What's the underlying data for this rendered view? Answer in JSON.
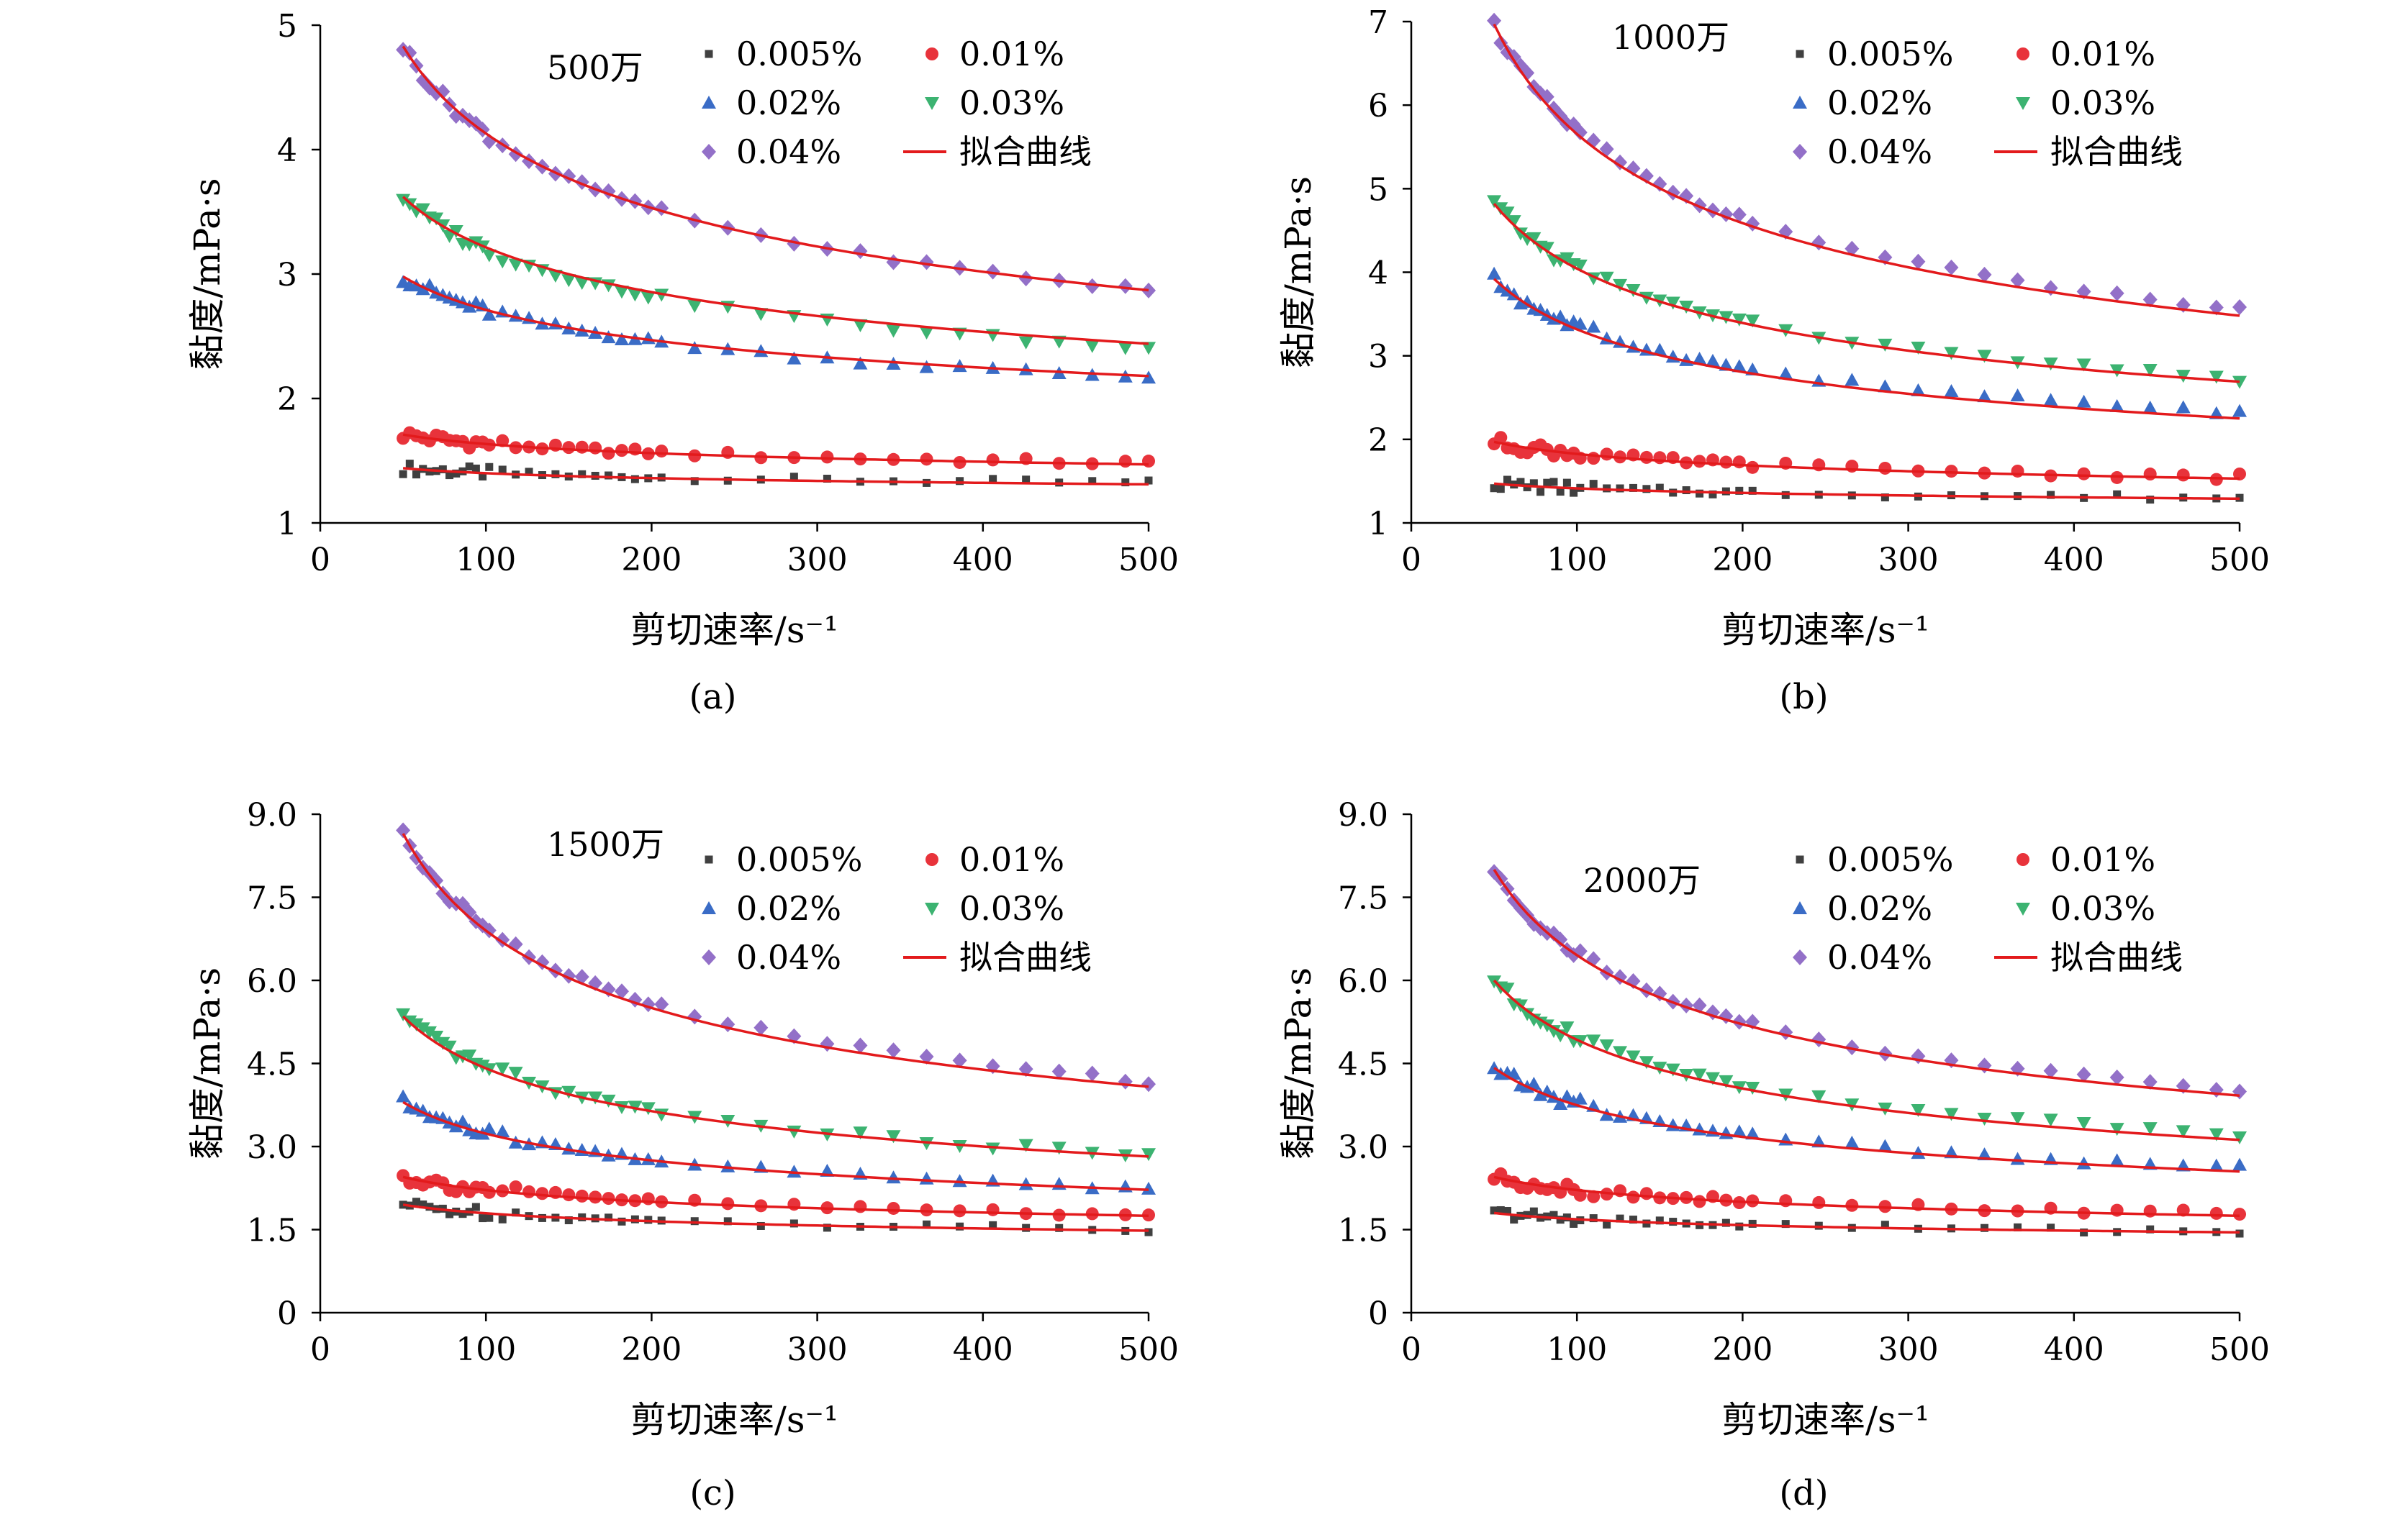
{
  "chart_data": [
    {
      "id": "a",
      "type": "scatter",
      "caption": "(a)",
      "annotation": "500万",
      "xlabel": "剪切速率/s⁻¹",
      "ylabel": "黏度/mPa·s",
      "xlim": [
        0,
        500
      ],
      "ylim": [
        1,
        5
      ],
      "xticks": [
        0,
        100,
        200,
        300,
        400,
        500
      ],
      "yticks": [
        1,
        2,
        3,
        4,
        5
      ],
      "ytick_labels": [
        "1",
        "2",
        "3",
        "4",
        "5"
      ],
      "fit_label": "拟合曲线",
      "fit_color": "#e31a1c",
      "series": [
        {
          "name": "0.005%",
          "marker": "square",
          "color": "#404040",
          "start": 1.44,
          "end": 1.32,
          "fit_start": 1.44,
          "fit_end": 1.31
        },
        {
          "name": "0.01%",
          "marker": "circle",
          "color": "#e8333b",
          "start": 1.71,
          "end": 1.48,
          "fit_start": 1.71,
          "fit_end": 1.47
        },
        {
          "name": "0.02%",
          "marker": "triangle-up",
          "color": "#3a6cc6",
          "start": 2.98,
          "end": 2.17,
          "fit_start": 2.98,
          "fit_end": 2.18
        },
        {
          "name": "0.03%",
          "marker": "triangle-down",
          "color": "#3cb371",
          "start": 3.62,
          "end": 2.4,
          "fit_start": 3.62,
          "fit_end": 2.44
        },
        {
          "name": "0.04%",
          "marker": "diamond",
          "color": "#9370c8",
          "start": 4.83,
          "end": 2.87,
          "fit_start": 4.83,
          "fit_end": 2.87
        }
      ]
    },
    {
      "id": "b",
      "type": "scatter",
      "caption": "(b)",
      "annotation": "1000万",
      "xlabel": "剪切速率/s⁻¹",
      "ylabel": "黏度/mPa·s",
      "xlim": [
        0,
        500
      ],
      "ylim": [
        1,
        7
      ],
      "xticks": [
        0,
        100,
        200,
        300,
        400,
        500
      ],
      "yticks": [
        1,
        2,
        3,
        4,
        5,
        6,
        7
      ],
      "ytick_labels": [
        "1",
        "2",
        "3",
        "4",
        "5",
        "6",
        "7"
      ],
      "fit_label": "拟合曲线",
      "fit_color": "#e31a1c",
      "series": [
        {
          "name": "0.005%",
          "marker": "square",
          "color": "#404040",
          "start": 1.47,
          "end": 1.3,
          "fit_start": 1.47,
          "fit_end": 1.29
        },
        {
          "name": "0.01%",
          "marker": "circle",
          "color": "#e8333b",
          "start": 1.97,
          "end": 1.55,
          "fit_start": 1.97,
          "fit_end": 1.53
        },
        {
          "name": "0.02%",
          "marker": "triangle-up",
          "color": "#3a6cc6",
          "start": 3.92,
          "end": 2.32,
          "fit_start": 3.92,
          "fit_end": 2.25
        },
        {
          "name": "0.03%",
          "marker": "triangle-down",
          "color": "#3cb371",
          "start": 4.82,
          "end": 2.72,
          "fit_start": 4.82,
          "fit_end": 2.69
        },
        {
          "name": "0.04%",
          "marker": "diamond",
          "color": "#9370c8",
          "start": 6.97,
          "end": 3.55,
          "fit_start": 6.97,
          "fit_end": 3.48
        }
      ]
    },
    {
      "id": "c",
      "type": "scatter",
      "caption": "(c)",
      "annotation": "1500万",
      "xlabel": "剪切速率/s⁻¹",
      "ylabel": "黏度/mPa·s",
      "xlim": [
        0,
        500
      ],
      "ylim": [
        0,
        9
      ],
      "xticks": [
        0,
        100,
        200,
        300,
        400,
        500
      ],
      "yticks": [
        0,
        1.5,
        3.0,
        4.5,
        6.0,
        7.5,
        9.0
      ],
      "ytick_labels": [
        "0",
        "1.5",
        "3.0",
        "4.5",
        "6.0",
        "7.5",
        "9.0"
      ],
      "fit_label": "拟合曲线",
      "fit_color": "#e31a1c",
      "series": [
        {
          "name": "0.005%",
          "marker": "square",
          "color": "#404040",
          "start": 1.95,
          "end": 1.5,
          "fit_start": 1.95,
          "fit_end": 1.48
        },
        {
          "name": "0.01%",
          "marker": "circle",
          "color": "#e8333b",
          "start": 2.45,
          "end": 1.78,
          "fit_start": 2.45,
          "fit_end": 1.75
        },
        {
          "name": "0.02%",
          "marker": "triangle-up",
          "color": "#3a6cc6",
          "start": 3.8,
          "end": 2.25,
          "fit_start": 3.8,
          "fit_end": 2.22
        },
        {
          "name": "0.03%",
          "marker": "triangle-down",
          "color": "#3cb371",
          "start": 5.35,
          "end": 2.85,
          "fit_start": 5.35,
          "fit_end": 2.82
        },
        {
          "name": "0.04%",
          "marker": "diamond",
          "color": "#9370c8",
          "start": 8.65,
          "end": 4.18,
          "fit_start": 8.65,
          "fit_end": 4.08
        }
      ]
    },
    {
      "id": "d",
      "type": "scatter",
      "caption": "(d)",
      "annotation": "2000万",
      "xlabel": "剪切速率/s⁻¹",
      "ylabel": "黏度/mPa·s",
      "xlim": [
        0,
        500
      ],
      "ylim": [
        0,
        9
      ],
      "xticks": [
        0,
        100,
        200,
        300,
        400,
        500
      ],
      "yticks": [
        0,
        1.5,
        3.0,
        4.5,
        6.0,
        7.5,
        9.0
      ],
      "ytick_labels": [
        "0",
        "1.5",
        "3.0",
        "4.5",
        "6.0",
        "7.5",
        "9.0"
      ],
      "fit_label": "拟合曲线",
      "fit_color": "#e31a1c",
      "series": [
        {
          "name": "0.005%",
          "marker": "square",
          "color": "#404040",
          "start": 1.8,
          "end": 1.47,
          "fit_start": 1.8,
          "fit_end": 1.45
        },
        {
          "name": "0.01%",
          "marker": "circle",
          "color": "#e8333b",
          "start": 2.45,
          "end": 1.78,
          "fit_start": 2.45,
          "fit_end": 1.75
        },
        {
          "name": "0.02%",
          "marker": "triangle-up",
          "color": "#3a6cc6",
          "start": 4.42,
          "end": 2.62,
          "fit_start": 4.42,
          "fit_end": 2.55
        },
        {
          "name": "0.03%",
          "marker": "triangle-down",
          "color": "#3cb371",
          "start": 6.0,
          "end": 3.2,
          "fit_start": 6.0,
          "fit_end": 3.12
        },
        {
          "name": "0.04%",
          "marker": "diamond",
          "color": "#9370c8",
          "start": 8.0,
          "end": 4.0,
          "fit_start": 8.0,
          "fit_end": 3.92
        }
      ]
    }
  ]
}
